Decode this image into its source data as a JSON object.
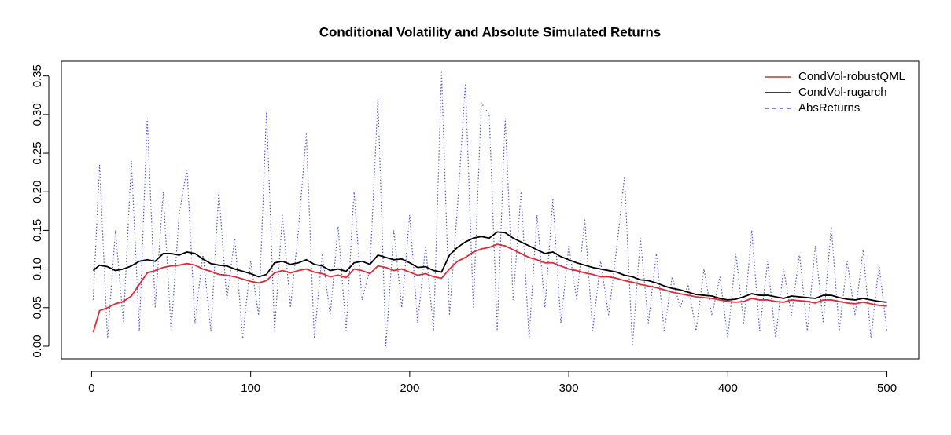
{
  "chart_data": {
    "type": "line",
    "title": "Conditional Volatility and Absolute Simulated Returns",
    "x": [
      1,
      5,
      10,
      15,
      20,
      25,
      30,
      35,
      40,
      45,
      50,
      55,
      60,
      65,
      70,
      75,
      80,
      85,
      90,
      95,
      100,
      105,
      110,
      115,
      120,
      125,
      130,
      135,
      140,
      145,
      150,
      155,
      160,
      165,
      170,
      175,
      180,
      185,
      190,
      195,
      200,
      205,
      210,
      215,
      220,
      225,
      230,
      235,
      240,
      245,
      250,
      255,
      260,
      265,
      270,
      275,
      280,
      285,
      290,
      295,
      300,
      305,
      310,
      315,
      320,
      325,
      330,
      335,
      340,
      345,
      350,
      355,
      360,
      365,
      370,
      375,
      380,
      385,
      390,
      395,
      400,
      405,
      410,
      415,
      420,
      425,
      430,
      435,
      440,
      445,
      450,
      455,
      460,
      465,
      470,
      475,
      480,
      485,
      490,
      495,
      500
    ],
    "series": [
      {
        "name": "AbsReturns",
        "color": "#5b5bd6",
        "linestyle": "dotted",
        "values": [
          0.06,
          0.235,
          0.01,
          0.15,
          0.03,
          0.24,
          0.02,
          0.295,
          0.05,
          0.2,
          0.02,
          0.17,
          0.23,
          0.03,
          0.12,
          0.02,
          0.2,
          0.06,
          0.14,
          0.01,
          0.11,
          0.04,
          0.305,
          0.02,
          0.17,
          0.05,
          0.15,
          0.275,
          0.01,
          0.12,
          0.04,
          0.155,
          0.02,
          0.2,
          0.06,
          0.1,
          0.32,
          0.0,
          0.15,
          0.05,
          0.17,
          0.03,
          0.13,
          0.02,
          0.355,
          0.04,
          0.18,
          0.34,
          0.05,
          0.315,
          0.3,
          0.02,
          0.295,
          0.06,
          0.2,
          0.01,
          0.17,
          0.05,
          0.19,
          0.03,
          0.13,
          0.06,
          0.165,
          0.02,
          0.11,
          0.04,
          0.125,
          0.22,
          0.0,
          0.14,
          0.03,
          0.12,
          0.02,
          0.09,
          0.05,
          0.08,
          0.02,
          0.1,
          0.04,
          0.09,
          0.01,
          0.12,
          0.03,
          0.15,
          0.02,
          0.11,
          0.01,
          0.1,
          0.04,
          0.12,
          0.02,
          0.13,
          0.03,
          0.155,
          0.02,
          0.11,
          0.04,
          0.125,
          0.01,
          0.105,
          0.02
        ]
      },
      {
        "name": "CondVol-rugarch",
        "color": "#000000",
        "linestyle": "solid",
        "values": [
          0.098,
          0.105,
          0.103,
          0.098,
          0.1,
          0.104,
          0.11,
          0.112,
          0.11,
          0.12,
          0.12,
          0.118,
          0.122,
          0.12,
          0.113,
          0.107,
          0.105,
          0.104,
          0.1,
          0.097,
          0.094,
          0.09,
          0.093,
          0.108,
          0.11,
          0.106,
          0.108,
          0.112,
          0.106,
          0.104,
          0.098,
          0.1,
          0.097,
          0.108,
          0.11,
          0.106,
          0.118,
          0.115,
          0.112,
          0.113,
          0.108,
          0.102,
          0.103,
          0.098,
          0.096,
          0.118,
          0.128,
          0.135,
          0.14,
          0.142,
          0.14,
          0.148,
          0.147,
          0.14,
          0.135,
          0.13,
          0.125,
          0.12,
          0.122,
          0.116,
          0.112,
          0.108,
          0.105,
          0.102,
          0.1,
          0.098,
          0.096,
          0.092,
          0.09,
          0.086,
          0.085,
          0.082,
          0.078,
          0.075,
          0.073,
          0.07,
          0.067,
          0.066,
          0.065,
          0.062,
          0.06,
          0.061,
          0.064,
          0.068,
          0.066,
          0.066,
          0.064,
          0.062,
          0.065,
          0.064,
          0.063,
          0.062,
          0.066,
          0.066,
          0.063,
          0.061,
          0.06,
          0.062,
          0.06,
          0.058,
          0.057
        ]
      },
      {
        "name": "CondVol-robustQML",
        "color": "#df2935",
        "linestyle": "solid",
        "values": [
          0.018,
          0.046,
          0.05,
          0.055,
          0.058,
          0.065,
          0.08,
          0.095,
          0.098,
          0.102,
          0.104,
          0.105,
          0.107,
          0.105,
          0.1,
          0.097,
          0.093,
          0.092,
          0.09,
          0.087,
          0.084,
          0.082,
          0.085,
          0.095,
          0.098,
          0.095,
          0.098,
          0.1,
          0.096,
          0.094,
          0.09,
          0.092,
          0.089,
          0.1,
          0.098,
          0.094,
          0.104,
          0.102,
          0.098,
          0.1,
          0.096,
          0.092,
          0.094,
          0.09,
          0.088,
          0.1,
          0.11,
          0.115,
          0.122,
          0.126,
          0.128,
          0.132,
          0.13,
          0.125,
          0.12,
          0.115,
          0.112,
          0.108,
          0.108,
          0.104,
          0.1,
          0.098,
          0.095,
          0.093,
          0.09,
          0.09,
          0.088,
          0.085,
          0.083,
          0.08,
          0.078,
          0.076,
          0.073,
          0.07,
          0.068,
          0.066,
          0.064,
          0.063,
          0.062,
          0.06,
          0.058,
          0.057,
          0.058,
          0.062,
          0.06,
          0.06,
          0.058,
          0.057,
          0.06,
          0.059,
          0.058,
          0.056,
          0.06,
          0.06,
          0.058,
          0.056,
          0.055,
          0.057,
          0.055,
          0.053,
          0.052
        ]
      }
    ],
    "legend_order": [
      "CondVol-robustQML",
      "CondVol-rugarch",
      "AbsReturns"
    ],
    "xlim": [
      -19,
      520
    ],
    "xticks": [
      0,
      100,
      200,
      300,
      400,
      500
    ],
    "ylim": [
      -0.0163,
      0.369
    ],
    "yticks": [
      {
        "value": 0,
        "label": "0.00"
      },
      0.05,
      {
        "value": 0.1,
        "label": "0.10"
      },
      0.15,
      {
        "value": 0.2,
        "label": "0.20"
      },
      0.25,
      {
        "value": 0.3,
        "label": "0.30"
      },
      0.35
    ],
    "legend": "topright",
    "grid": false
  }
}
